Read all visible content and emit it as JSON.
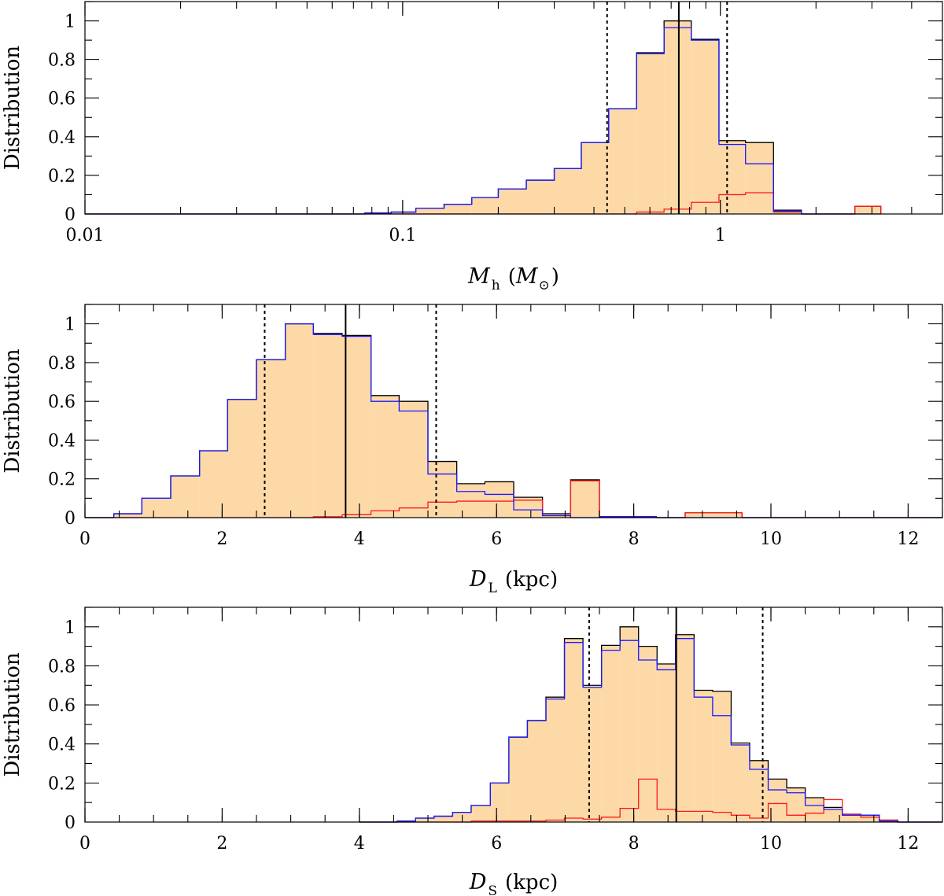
{
  "colors": {
    "fill": "#fdd9a8",
    "total": "#000000",
    "blue": "#1a1aff",
    "red": "#ff1a1a"
  },
  "chart_data": [
    {
      "type": "bar",
      "scale": "log",
      "xlim": [
        0.01,
        5
      ],
      "ylim": [
        0,
        1.1
      ],
      "ylabel": "Distribution",
      "xlabel": {
        "symbol": "M",
        "sub": "h",
        "rest": "(M",
        "unit_sub": "⊙",
        "close": ")"
      },
      "xticks": [
        {
          "v": 0.01,
          "label": "0.01"
        },
        {
          "v": 0.1,
          "label": "0.1"
        },
        {
          "v": 1,
          "label": "1"
        }
      ],
      "yticks": [
        {
          "v": 0,
          "label": "0"
        },
        {
          "v": 0.2,
          "label": "0.2"
        },
        {
          "v": 0.4,
          "label": "0.4"
        },
        {
          "v": 0.6,
          "label": "0.6"
        },
        {
          "v": 0.8,
          "label": "0.8"
        },
        {
          "v": 1,
          "label": "1"
        }
      ],
      "median": 0.74,
      "interval": [
        0.44,
        1.05
      ],
      "bin_edges": [
        0.01,
        0.076,
        0.092,
        0.11,
        0.135,
        0.165,
        0.2,
        0.245,
        0.3,
        0.365,
        0.445,
        0.545,
        0.665,
        0.81,
        0.99,
        1.2,
        1.47,
        1.8,
        2.2,
        2.65,
        3.2
      ],
      "total": [
        0,
        0.005,
        0.01,
        0.03,
        0.05,
        0.085,
        0.13,
        0.175,
        0.235,
        0.37,
        0.545,
        0.835,
        1.0,
        0.905,
        0.38,
        0.37,
        0.02,
        0,
        0,
        0.04
      ],
      "blue": [
        0,
        0.005,
        0.01,
        0.03,
        0.05,
        0.085,
        0.13,
        0.175,
        0.235,
        0.37,
        0.545,
        0.83,
        0.965,
        0.9,
        0.36,
        0.26,
        0.015,
        0,
        0,
        0
      ],
      "red": [
        0,
        0,
        0,
        0,
        0,
        0,
        0,
        0,
        0,
        0,
        0,
        0.01,
        0.025,
        0.06,
        0.1,
        0.11,
        0.01,
        0,
        0,
        0.04
      ]
    },
    {
      "type": "bar",
      "scale": "linear",
      "xlim": [
        0,
        12.5
      ],
      "ylim": [
        0,
        1.1
      ],
      "ylabel": "Distribution",
      "xlabel": {
        "symbol": "D",
        "sub": "L",
        "rest": "(kpc)"
      },
      "xticks": [
        {
          "v": 0,
          "label": "0"
        },
        {
          "v": 2,
          "label": "2"
        },
        {
          "v": 4,
          "label": "4"
        },
        {
          "v": 6,
          "label": "6"
        },
        {
          "v": 8,
          "label": "8"
        },
        {
          "v": 10,
          "label": "10"
        },
        {
          "v": 12,
          "label": "12"
        }
      ],
      "yticks": [
        {
          "v": 0,
          "label": "0"
        },
        {
          "v": 0.2,
          "label": "0.2"
        },
        {
          "v": 0.4,
          "label": "0.4"
        },
        {
          "v": 0.6,
          "label": "0.6"
        },
        {
          "v": 0.8,
          "label": "0.8"
        },
        {
          "v": 1,
          "label": "1"
        }
      ],
      "median": 3.8,
      "interval": [
        2.62,
        5.12
      ],
      "bin_edges": [
        0,
        0.42,
        0.83,
        1.25,
        1.67,
        2.08,
        2.5,
        2.92,
        3.33,
        3.75,
        4.17,
        4.58,
        5.0,
        5.42,
        5.83,
        6.25,
        6.67,
        7.08,
        7.5,
        7.92,
        8.33,
        8.75,
        9.17,
        9.58,
        10.0,
        12.5
      ],
      "total": [
        0,
        0.02,
        0.1,
        0.215,
        0.345,
        0.61,
        0.815,
        1.0,
        0.95,
        0.94,
        0.63,
        0.6,
        0.29,
        0.175,
        0.185,
        0.105,
        0.02,
        0.195,
        0.005,
        0.005,
        0,
        0.025,
        0.025,
        0,
        0
      ],
      "blue": [
        0,
        0.02,
        0.1,
        0.215,
        0.345,
        0.61,
        0.815,
        1.0,
        0.945,
        0.935,
        0.6,
        0.55,
        0.225,
        0.135,
        0.12,
        0.04,
        0.01,
        0,
        0.005,
        0.005,
        0,
        0,
        0,
        0,
        0
      ],
      "red": [
        0,
        0,
        0,
        0,
        0,
        0,
        0,
        0,
        0.005,
        0.015,
        0.035,
        0.05,
        0.08,
        0.085,
        0.085,
        0.09,
        0.01,
        0.19,
        0,
        0,
        0,
        0.025,
        0.025,
        0,
        0
      ]
    },
    {
      "type": "bar",
      "scale": "linear",
      "xlim": [
        0,
        12.5
      ],
      "ylim": [
        0,
        1.1
      ],
      "ylabel": "Distribution",
      "xlabel": {
        "symbol": "D",
        "sub": "S",
        "rest": "(kpc)"
      },
      "xticks": [
        {
          "v": 0,
          "label": "0"
        },
        {
          "v": 2,
          "label": "2"
        },
        {
          "v": 4,
          "label": "4"
        },
        {
          "v": 6,
          "label": "6"
        },
        {
          "v": 8,
          "label": "8"
        },
        {
          "v": 10,
          "label": "10"
        },
        {
          "v": 12,
          "label": "12"
        }
      ],
      "yticks": [
        {
          "v": 0,
          "label": "0"
        },
        {
          "v": 0.2,
          "label": "0.2"
        },
        {
          "v": 0.4,
          "label": "0.4"
        },
        {
          "v": 0.6,
          "label": "0.6"
        },
        {
          "v": 0.8,
          "label": "0.8"
        },
        {
          "v": 1,
          "label": "1"
        }
      ],
      "median": 8.62,
      "interval": [
        7.35,
        9.88
      ],
      "bin_edges": [
        4.0,
        4.55,
        4.82,
        5.09,
        5.36,
        5.63,
        5.91,
        6.18,
        6.45,
        6.72,
        6.99,
        7.26,
        7.53,
        7.8,
        8.07,
        8.34,
        8.61,
        8.88,
        9.15,
        9.42,
        9.69,
        9.96,
        10.23,
        10.5,
        10.77,
        11.04,
        11.31,
        11.58,
        11.85,
        12.5
      ],
      "total": [
        0,
        0.005,
        0.02,
        0.03,
        0.05,
        0.085,
        0.2,
        0.435,
        0.52,
        0.64,
        0.94,
        0.7,
        0.905,
        1.0,
        0.9,
        0.81,
        0.96,
        0.675,
        0.67,
        0.405,
        0.315,
        0.22,
        0.175,
        0.125,
        0.075,
        0.04,
        0.035,
        0.01,
        0
      ],
      "blue": [
        0,
        0.005,
        0.02,
        0.03,
        0.05,
        0.085,
        0.2,
        0.435,
        0.52,
        0.63,
        0.92,
        0.69,
        0.88,
        0.93,
        0.83,
        0.78,
        0.94,
        0.64,
        0.545,
        0.395,
        0.27,
        0.165,
        0.15,
        0.085,
        0.065,
        0.035,
        0.035,
        0.005,
        0
      ],
      "red": [
        0,
        0,
        0,
        0,
        0,
        0.005,
        0.005,
        0.005,
        0.005,
        0.01,
        0.02,
        0.015,
        0.025,
        0.07,
        0.22,
        0.065,
        0.055,
        0.055,
        0.05,
        0.035,
        0.02,
        0.095,
        0.035,
        0.045,
        0.115,
        0.04,
        0.025,
        0.01,
        0
      ]
    }
  ]
}
